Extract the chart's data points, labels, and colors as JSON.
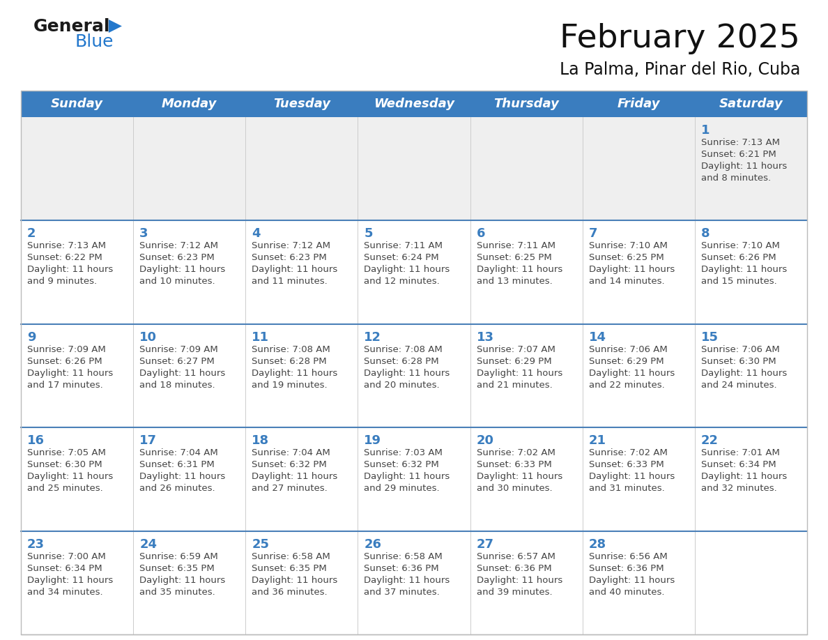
{
  "title": "February 2025",
  "subtitle": "La Palma, Pinar del Rio, Cuba",
  "header_bg": "#3a7dbf",
  "header_text": "#ffffff",
  "day_names": [
    "Sunday",
    "Monday",
    "Tuesday",
    "Wednesday",
    "Thursday",
    "Friday",
    "Saturday"
  ],
  "week1_bg": "#efefef",
  "week_bg": "#ffffff",
  "separator_color": "#4a80b8",
  "day_num_color": "#3a7dbf",
  "text_color": "#444444",
  "calendar": [
    [
      null,
      null,
      null,
      null,
      null,
      null,
      {
        "day": "1",
        "sunrise": "7:13 AM",
        "sunset": "6:21 PM",
        "daylight_line1": "Daylight: 11 hours",
        "daylight_line2": "and 8 minutes."
      }
    ],
    [
      {
        "day": "2",
        "sunrise": "7:13 AM",
        "sunset": "6:22 PM",
        "daylight_line1": "Daylight: 11 hours",
        "daylight_line2": "and 9 minutes."
      },
      {
        "day": "3",
        "sunrise": "7:12 AM",
        "sunset": "6:23 PM",
        "daylight_line1": "Daylight: 11 hours",
        "daylight_line2": "and 10 minutes."
      },
      {
        "day": "4",
        "sunrise": "7:12 AM",
        "sunset": "6:23 PM",
        "daylight_line1": "Daylight: 11 hours",
        "daylight_line2": "and 11 minutes."
      },
      {
        "day": "5",
        "sunrise": "7:11 AM",
        "sunset": "6:24 PM",
        "daylight_line1": "Daylight: 11 hours",
        "daylight_line2": "and 12 minutes."
      },
      {
        "day": "6",
        "sunrise": "7:11 AM",
        "sunset": "6:25 PM",
        "daylight_line1": "Daylight: 11 hours",
        "daylight_line2": "and 13 minutes."
      },
      {
        "day": "7",
        "sunrise": "7:10 AM",
        "sunset": "6:25 PM",
        "daylight_line1": "Daylight: 11 hours",
        "daylight_line2": "and 14 minutes."
      },
      {
        "day": "8",
        "sunrise": "7:10 AM",
        "sunset": "6:26 PM",
        "daylight_line1": "Daylight: 11 hours",
        "daylight_line2": "and 15 minutes."
      }
    ],
    [
      {
        "day": "9",
        "sunrise": "7:09 AM",
        "sunset": "6:26 PM",
        "daylight_line1": "Daylight: 11 hours",
        "daylight_line2": "and 17 minutes."
      },
      {
        "day": "10",
        "sunrise": "7:09 AM",
        "sunset": "6:27 PM",
        "daylight_line1": "Daylight: 11 hours",
        "daylight_line2": "and 18 minutes."
      },
      {
        "day": "11",
        "sunrise": "7:08 AM",
        "sunset": "6:28 PM",
        "daylight_line1": "Daylight: 11 hours",
        "daylight_line2": "and 19 minutes."
      },
      {
        "day": "12",
        "sunrise": "7:08 AM",
        "sunset": "6:28 PM",
        "daylight_line1": "Daylight: 11 hours",
        "daylight_line2": "and 20 minutes."
      },
      {
        "day": "13",
        "sunrise": "7:07 AM",
        "sunset": "6:29 PM",
        "daylight_line1": "Daylight: 11 hours",
        "daylight_line2": "and 21 minutes."
      },
      {
        "day": "14",
        "sunrise": "7:06 AM",
        "sunset": "6:29 PM",
        "daylight_line1": "Daylight: 11 hours",
        "daylight_line2": "and 22 minutes."
      },
      {
        "day": "15",
        "sunrise": "7:06 AM",
        "sunset": "6:30 PM",
        "daylight_line1": "Daylight: 11 hours",
        "daylight_line2": "and 24 minutes."
      }
    ],
    [
      {
        "day": "16",
        "sunrise": "7:05 AM",
        "sunset": "6:30 PM",
        "daylight_line1": "Daylight: 11 hours",
        "daylight_line2": "and 25 minutes."
      },
      {
        "day": "17",
        "sunrise": "7:04 AM",
        "sunset": "6:31 PM",
        "daylight_line1": "Daylight: 11 hours",
        "daylight_line2": "and 26 minutes."
      },
      {
        "day": "18",
        "sunrise": "7:04 AM",
        "sunset": "6:32 PM",
        "daylight_line1": "Daylight: 11 hours",
        "daylight_line2": "and 27 minutes."
      },
      {
        "day": "19",
        "sunrise": "7:03 AM",
        "sunset": "6:32 PM",
        "daylight_line1": "Daylight: 11 hours",
        "daylight_line2": "and 29 minutes."
      },
      {
        "day": "20",
        "sunrise": "7:02 AM",
        "sunset": "6:33 PM",
        "daylight_line1": "Daylight: 11 hours",
        "daylight_line2": "and 30 minutes."
      },
      {
        "day": "21",
        "sunrise": "7:02 AM",
        "sunset": "6:33 PM",
        "daylight_line1": "Daylight: 11 hours",
        "daylight_line2": "and 31 minutes."
      },
      {
        "day": "22",
        "sunrise": "7:01 AM",
        "sunset": "6:34 PM",
        "daylight_line1": "Daylight: 11 hours",
        "daylight_line2": "and 32 minutes."
      }
    ],
    [
      {
        "day": "23",
        "sunrise": "7:00 AM",
        "sunset": "6:34 PM",
        "daylight_line1": "Daylight: 11 hours",
        "daylight_line2": "and 34 minutes."
      },
      {
        "day": "24",
        "sunrise": "6:59 AM",
        "sunset": "6:35 PM",
        "daylight_line1": "Daylight: 11 hours",
        "daylight_line2": "and 35 minutes."
      },
      {
        "day": "25",
        "sunrise": "6:58 AM",
        "sunset": "6:35 PM",
        "daylight_line1": "Daylight: 11 hours",
        "daylight_line2": "and 36 minutes."
      },
      {
        "day": "26",
        "sunrise": "6:58 AM",
        "sunset": "6:36 PM",
        "daylight_line1": "Daylight: 11 hours",
        "daylight_line2": "and 37 minutes."
      },
      {
        "day": "27",
        "sunrise": "6:57 AM",
        "sunset": "6:36 PM",
        "daylight_line1": "Daylight: 11 hours",
        "daylight_line2": "and 39 minutes."
      },
      {
        "day": "28",
        "sunrise": "6:56 AM",
        "sunset": "6:36 PM",
        "daylight_line1": "Daylight: 11 hours",
        "daylight_line2": "and 40 minutes."
      },
      null
    ]
  ]
}
